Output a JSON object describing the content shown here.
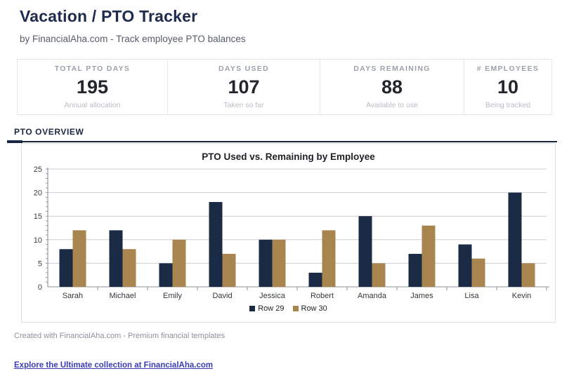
{
  "page": {
    "title": "Vacation / PTO Tracker",
    "subtitle": "by FinancialAha.com - Track employee PTO balances"
  },
  "stats": [
    {
      "label": "TOTAL PTO DAYS",
      "value": "195",
      "sub": "Annual allocation"
    },
    {
      "label": "DAYS USED",
      "value": "107",
      "sub": "Taken so far"
    },
    {
      "label": "DAYS REMAINING",
      "value": "88",
      "sub": "Available to use"
    },
    {
      "label": "# EMPLOYEES",
      "value": "10",
      "sub": "Being tracked"
    }
  ],
  "section": {
    "header": "PTO OVERVIEW"
  },
  "chart_data": {
    "type": "bar",
    "title": "PTO Used vs. Remaining by Employee",
    "categories": [
      "Sarah",
      "Michael",
      "Emily",
      "David",
      "Jessica",
      "Robert",
      "Amanda",
      "James",
      "Lisa",
      "Kevin"
    ],
    "series": [
      {
        "name": "Row 29",
        "color": "#1b2a45",
        "values": [
          8,
          12,
          5,
          18,
          10,
          3,
          15,
          7,
          9,
          20
        ]
      },
      {
        "name": "Row 30",
        "color": "#a8854e",
        "values": [
          12,
          8,
          10,
          7,
          10,
          12,
          5,
          13,
          6,
          5
        ]
      }
    ],
    "xlabel": "",
    "ylabel": "",
    "ylim": [
      0,
      25
    ],
    "ytick_step": 5,
    "minor_tick_step": 1,
    "grid": true,
    "legend_position": "bottom"
  },
  "footer": {
    "credit": "Created with FinancialAha.com - Premium financial templates",
    "link": "Explore the Ultimate collection at FinancialAha.com"
  },
  "colors": {
    "accent_navy": "#1a2742",
    "grid": "#cbced4",
    "axis": "#8e9299",
    "tick_label": "#3a3d42",
    "link": "#3b3db8"
  }
}
